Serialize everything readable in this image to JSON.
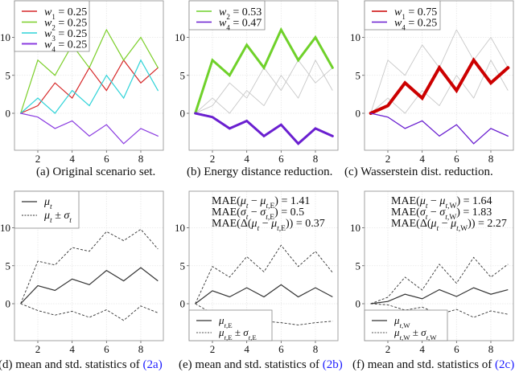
{
  "figure": {
    "captions": [
      "(a) Original scenario set.",
      "(b) Energy distance reduction.",
      "(c) Wasserstein dist. reduction."
    ],
    "bottom_captions": [
      {
        "prefix": "(d) mean and std. statistics of ",
        "ref": "(2a)"
      },
      {
        "prefix": "(e) mean and std. statistics of ",
        "ref": "(2b)"
      },
      {
        "prefix": "(f) mean and std. statistics of ",
        "ref": "(2c)"
      }
    ]
  },
  "chart_data": [
    {
      "id": "a",
      "type": "line",
      "title": "(a) Original scenario set.",
      "x": [
        1,
        2,
        3,
        4,
        5,
        6,
        7,
        8,
        9
      ],
      "xticks": [
        2,
        4,
        6,
        8
      ],
      "yticks": [
        0,
        5,
        10
      ],
      "xlim": [
        0.6,
        9.4
      ],
      "ylim": [
        -5,
        14.5
      ],
      "grid": true,
      "legend": "top-left",
      "series": [
        {
          "name": "w1 = 0.25",
          "sub": "1",
          "weight": "0.25",
          "color": "#d62728",
          "width": 1.2,
          "values": [
            0,
            1,
            4,
            2,
            6,
            3,
            7,
            4,
            6
          ]
        },
        {
          "name": "w2 = 0.25",
          "sub": "2",
          "weight": "0.25",
          "color": "#7ccf2a",
          "width": 1.2,
          "values": [
            0,
            7,
            5,
            9,
            6,
            11,
            7,
            10,
            6
          ]
        },
        {
          "name": "w3 = 0.25",
          "sub": "3",
          "weight": "0.25",
          "color": "#2ed3d8",
          "width": 1.2,
          "values": [
            0,
            2,
            0,
            3,
            1,
            5,
            2,
            7,
            3
          ]
        },
        {
          "name": "w4 = 0.25",
          "sub": "4",
          "weight": "0.25",
          "color": "#8a3be0",
          "width": 1.2,
          "values": [
            0,
            -0.5,
            -2,
            -1,
            -3,
            -1.5,
            -4,
            -2,
            -3
          ]
        }
      ]
    },
    {
      "id": "b",
      "type": "line",
      "title": "(b) Energy distance reduction.",
      "x": [
        1,
        2,
        3,
        4,
        5,
        6,
        7,
        8,
        9
      ],
      "xticks": [
        2,
        4,
        6,
        8
      ],
      "yticks": [
        0,
        5,
        10
      ],
      "xlim": [
        0.6,
        9.4
      ],
      "ylim": [
        -5,
        14.5
      ],
      "grid": true,
      "legend": "top-left",
      "background_series": [
        {
          "color": "#c8c8c8",
          "values": [
            0,
            1,
            4,
            2,
            6,
            3,
            7,
            4,
            6
          ]
        },
        {
          "color": "#c8c8c8",
          "values": [
            0,
            2,
            0,
            3,
            1,
            5,
            2,
            7,
            3
          ]
        }
      ],
      "series": [
        {
          "name": "w2 = 0.53",
          "sub": "2",
          "weight": "0.53",
          "color": "#6fd12a",
          "width": 3,
          "values": [
            0,
            7,
            5,
            9,
            6,
            11,
            7,
            10,
            6
          ]
        },
        {
          "name": "w4 = 0.47",
          "sub": "4",
          "weight": "0.47",
          "color": "#6a1fd0",
          "width": 3,
          "values": [
            0,
            -0.5,
            -2,
            -1,
            -3,
            -1.5,
            -4,
            -2,
            -3
          ]
        }
      ]
    },
    {
      "id": "c",
      "type": "line",
      "title": "(c) Wasserstein dist. reduction.",
      "x": [
        1,
        2,
        3,
        4,
        5,
        6,
        7,
        8,
        9
      ],
      "xticks": [
        2,
        4,
        6,
        8
      ],
      "yticks": [
        0,
        5,
        10
      ],
      "xlim": [
        0.6,
        9.4
      ],
      "ylim": [
        -5,
        14.5
      ],
      "grid": true,
      "legend": "top-left",
      "background_series": [
        {
          "color": "#c8c8c8",
          "values": [
            0,
            7,
            5,
            9,
            6,
            11,
            7,
            10,
            6
          ]
        },
        {
          "color": "#c8c8c8",
          "values": [
            0,
            2,
            0,
            3,
            1,
            5,
            2,
            7,
            3
          ]
        }
      ],
      "series": [
        {
          "name": "w1 = 0.75",
          "sub": "1",
          "weight": "0.75",
          "color": "#cc0000",
          "width": 4,
          "values": [
            0,
            1,
            4,
            2,
            6,
            3,
            7,
            4,
            6
          ]
        },
        {
          "name": "w4 = 0.25",
          "sub": "4",
          "weight": "0.25",
          "color": "#6a1fd0",
          "width": 1.3,
          "values": [
            0,
            -0.5,
            -2,
            -1,
            -3,
            -1.5,
            -4,
            -2,
            -3
          ]
        }
      ]
    },
    {
      "id": "d",
      "type": "line",
      "title": "(d) mean and std. statistics of (2a)",
      "x": [
        1,
        2,
        3,
        4,
        5,
        6,
        7,
        8,
        9
      ],
      "xticks": [
        2,
        4,
        6,
        8
      ],
      "yticks": [
        0,
        5,
        10
      ],
      "xlim": [
        0.6,
        9.4
      ],
      "ylim": [
        -5,
        14.5
      ],
      "grid": true,
      "legend": "top-left",
      "legend_labels": {
        "mean": "μ_t",
        "band": "μ_t ± σ_t"
      },
      "series": [
        {
          "name": "μ_t",
          "style": "solid",
          "values": [
            0,
            2.375,
            1.75,
            3.25,
            2.5,
            4.375,
            3.0,
            4.75,
            3.0
          ]
        },
        {
          "name": "μ_t + σ_t",
          "style": "dashed",
          "values": [
            0,
            5.6,
            5.1,
            7.4,
            6.9,
            9.5,
            8.3,
            9.8,
            7.2
          ]
        },
        {
          "name": "μ_t − σ_t",
          "style": "dashed",
          "values": [
            0,
            -0.9,
            -1.5,
            -1.0,
            -1.8,
            -0.8,
            -2.2,
            -0.3,
            -1.2
          ]
        }
      ]
    },
    {
      "id": "e",
      "type": "line",
      "title": "(e) mean and std. statistics of (2b)",
      "x": [
        1,
        2,
        3,
        4,
        5,
        6,
        7,
        8,
        9
      ],
      "xticks": [
        2,
        4,
        6,
        8
      ],
      "yticks": [
        0,
        5,
        10
      ],
      "xlim": [
        0.6,
        9.4
      ],
      "ylim": [
        -5,
        14.5
      ],
      "grid": true,
      "legend": "bottom-left",
      "annotations": [
        {
          "lhs": "MAE(μ_t − μ_t,E)",
          "value": "1.41"
        },
        {
          "lhs": "MAE(σ_t − σ_t,E)",
          "value": "0.5"
        },
        {
          "lhs": "MAE(Δ(μ_t − μ_t,E))",
          "value": "0.37"
        }
      ],
      "legend_labels": {
        "mean": "μ_t,E",
        "band": "μ_t,E ± σ_t,E"
      },
      "series": [
        {
          "name": "μ_t,E",
          "style": "solid",
          "values": [
            0,
            1.7,
            0.9,
            2.1,
            0.9,
            2.5,
            0.9,
            2.1,
            0.9
          ]
        },
        {
          "name": "μ_t,E + σ_t,E",
          "style": "dashed",
          "values": [
            0,
            4.9,
            3.5,
            6.2,
            4.2,
            7.7,
            4.9,
            6.9,
            4.1
          ]
        },
        {
          "name": "μ_t,E − σ_t,E",
          "style": "dashed",
          "values": [
            0,
            -1.3,
            -1.7,
            -2.0,
            -2.3,
            -2.5,
            -2.8,
            -2.5,
            -2.3
          ]
        }
      ]
    },
    {
      "id": "f",
      "type": "line",
      "title": "(f) mean and std. statistics of (2c)",
      "x": [
        1,
        2,
        3,
        4,
        5,
        6,
        7,
        8,
        9
      ],
      "xticks": [
        2,
        4,
        6,
        8
      ],
      "yticks": [
        0,
        5,
        10
      ],
      "xlim": [
        0.6,
        9.4
      ],
      "ylim": [
        -5,
        14.5
      ],
      "grid": true,
      "legend": "bottom-left",
      "annotations": [
        {
          "lhs": "MAE(μ_t − μ_t,W)",
          "value": "1.64"
        },
        {
          "lhs": "MAE(σ_t − σ_t,W)",
          "value": "1.83"
        },
        {
          "lhs": "MAE(Δ(μ_t − μ_t,W))",
          "value": "2.27"
        }
      ],
      "legend_labels": {
        "mean": "μ_t,W",
        "band": "μ_t,W ± σ_t,W"
      },
      "series": [
        {
          "name": "μ_t,W",
          "style": "solid",
          "values": [
            0,
            0.3,
            1.25,
            0.65,
            1.85,
            0.95,
            2.1,
            1.25,
            1.85
          ]
        },
        {
          "name": "μ_t,W + σ_t,W",
          "style": "dashed",
          "values": [
            0,
            0.85,
            3.5,
            1.8,
            5.2,
            2.7,
            6.1,
            3.5,
            5.2
          ]
        },
        {
          "name": "μ_t,W − σ_t,W",
          "style": "dashed",
          "values": [
            0,
            -0.15,
            -0.85,
            -0.45,
            -1.4,
            -0.75,
            -1.8,
            -0.95,
            -1.4
          ]
        }
      ]
    }
  ]
}
